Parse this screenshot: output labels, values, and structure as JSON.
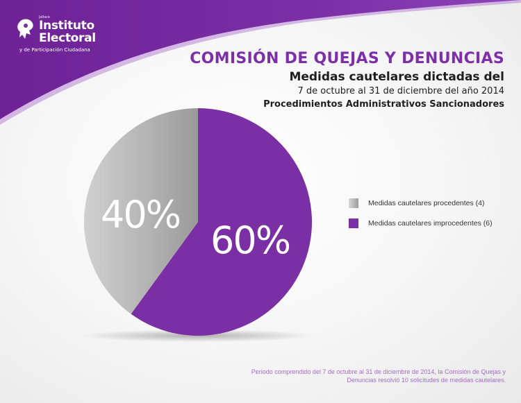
{
  "colors": {
    "brand_purple": "#7b2fa5",
    "procedentes": "#a8a8a8",
    "improcedentes": "#7b2fa5"
  },
  "logo": {
    "icon": "institute-logo-icon",
    "line_tiny": "Jalisco",
    "line1": "Instituto",
    "line2": "Electoral",
    "line3": "y de Participación Ciudadana"
  },
  "header": {
    "title": "COMISIÓN DE QUEJAS Y DENUNCIAS",
    "subtitle1": "Medidas cautelares dictadas del",
    "subtitle2": "7 de octubre al 31 de diciembre del año 2014",
    "subtitle3": "Procedimientos Administrativos Sancionadores"
  },
  "chart_data": {
    "type": "pie",
    "slices": [
      {
        "label": "Medidas cautelares improcedentes (6)",
        "value": 60,
        "display": "60%",
        "color": "#7b2fa5"
      },
      {
        "label": "Medidas cautelares procedentes (4)",
        "value": 40,
        "display": "40%",
        "color": "#a8a8a8"
      }
    ],
    "legend": {
      "position": "right"
    }
  },
  "footnote": {
    "line1": "Periodo comprendido del 7 de octubre al 31 de diciembre de 2014, la Comisión de Quejas y",
    "line2": "Denuncias resolvió 10 solicitudes de medidas cautelares."
  }
}
